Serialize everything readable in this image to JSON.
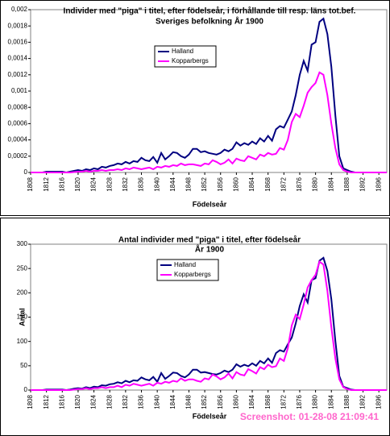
{
  "chart_data": [
    {
      "type": "line",
      "title": [
        "Individer med \"piga\" i titel, efter födelseår, i förhållande till resp. läns tot.bef.",
        "Sveriges befolkning År 1900"
      ],
      "xlabel": "Födelseår",
      "x": [
        1808,
        1809,
        1810,
        1811,
        1812,
        1813,
        1814,
        1815,
        1816,
        1817,
        1818,
        1819,
        1820,
        1821,
        1822,
        1823,
        1824,
        1825,
        1826,
        1827,
        1828,
        1829,
        1830,
        1831,
        1832,
        1833,
        1834,
        1835,
        1836,
        1837,
        1838,
        1839,
        1840,
        1841,
        1842,
        1843,
        1844,
        1845,
        1846,
        1847,
        1848,
        1849,
        1850,
        1851,
        1852,
        1853,
        1854,
        1855,
        1856,
        1857,
        1858,
        1859,
        1860,
        1861,
        1862,
        1863,
        1864,
        1865,
        1866,
        1867,
        1868,
        1869,
        1870,
        1871,
        1872,
        1873,
        1874,
        1875,
        1876,
        1877,
        1878,
        1879,
        1880,
        1881,
        1882,
        1883,
        1884,
        1885,
        1886,
        1887,
        1888,
        1889,
        1890,
        1891,
        1892,
        1893,
        1894,
        1895,
        1896,
        1897,
        1898
      ],
      "series": [
        {
          "name": "Halland",
          "color": "#000080",
          "values": [
            0,
            0,
            0,
            0,
            1e-05,
            1e-05,
            1e-05,
            1e-05,
            1e-05,
            0,
            1e-05,
            2e-05,
            3e-05,
            2e-05,
            4e-05,
            3e-05,
            5e-05,
            4e-05,
            7e-05,
            6e-05,
            8e-05,
            9e-05,
            0.00011,
            0.0001,
            0.00013,
            0.00011,
            0.00014,
            0.00013,
            0.00018,
            0.00015,
            0.00014,
            0.00019,
            0.00012,
            0.00024,
            0.00016,
            0.0002,
            0.00025,
            0.00024,
            0.0002,
            0.00018,
            0.00022,
            0.00029,
            0.00029,
            0.00025,
            0.00026,
            0.00024,
            0.00023,
            0.00022,
            0.00024,
            0.00028,
            0.00026,
            0.00029,
            0.00037,
            0.00033,
            0.00036,
            0.00034,
            0.00038,
            0.00035,
            0.00042,
            0.00038,
            0.00045,
            0.00039,
            0.00053,
            0.00057,
            0.00055,
            0.00065,
            0.00075,
            0.00095,
            0.0012,
            0.00137,
            0.00125,
            0.00157,
            0.0016,
            0.00185,
            0.00189,
            0.0017,
            0.0013,
            0.0007,
            0.0002,
            5e-05,
            3e-05,
            1e-05,
            0,
            0,
            0,
            0,
            0,
            0,
            0,
            0,
            0
          ]
        },
        {
          "name": "Kopparbergs",
          "color": "#ff00ff",
          "values": [
            0,
            0,
            0,
            0,
            0,
            0,
            0,
            0,
            0,
            0,
            0,
            5e-06,
            1e-05,
            1e-05,
            2e-05,
            1e-05,
            2e-05,
            2e-05,
            3e-05,
            2e-05,
            3e-05,
            3e-05,
            4e-05,
            3e-05,
            5e-05,
            4e-05,
            6e-05,
            5e-05,
            4e-05,
            5e-05,
            6e-05,
            4e-05,
            7e-05,
            6e-05,
            8e-05,
            7e-05,
            9e-05,
            8e-05,
            0.00011,
            9e-05,
            0.0001,
            0.0001,
            9e-05,
            8e-05,
            0.00011,
            0.0001,
            0.00015,
            0.00013,
            0.0001,
            0.00012,
            0.00016,
            0.00011,
            0.00017,
            0.00015,
            0.00014,
            0.0002,
            0.00018,
            0.00016,
            0.00022,
            0.0002,
            0.00024,
            0.00022,
            0.00023,
            0.0003,
            0.00028,
            0.0004,
            0.00062,
            0.00072,
            0.00068,
            0.00082,
            0.00098,
            0.00105,
            0.0011,
            0.00123,
            0.0012,
            0.00095,
            0.0006,
            0.0003,
            0.0001,
            3e-05,
            1e-05,
            0,
            0,
            0,
            0,
            0,
            0,
            0,
            0,
            0,
            0
          ]
        }
      ],
      "xlim": [
        1808,
        1898
      ],
      "xticks": [
        1808,
        1812,
        1816,
        1820,
        1824,
        1828,
        1832,
        1836,
        1840,
        1844,
        1848,
        1852,
        1856,
        1860,
        1864,
        1868,
        1872,
        1876,
        1880,
        1884,
        1888,
        1892,
        1896
      ],
      "ylim": [
        0,
        0.002
      ],
      "yticks": [
        0,
        {
          "value": 0.0002,
          "label": "0,0002"
        },
        {
          "value": 0.0004,
          "label": "0,0004"
        },
        {
          "value": 0.0006,
          "label": "0,0006"
        },
        {
          "value": 0.0008,
          "label": "0,0008"
        },
        {
          "value": 0.001,
          "label": "0,001"
        },
        {
          "value": 0.0012,
          "label": "0,0012"
        },
        {
          "value": 0.0014,
          "label": "0,0014"
        },
        {
          "value": 0.0016,
          "label": "0,0016"
        },
        {
          "value": 0.0018,
          "label": "0,0018"
        },
        {
          "value": 0.002,
          "label": "0,002"
        }
      ],
      "grid": false
    },
    {
      "type": "line",
      "title": [
        "Antal individer med \"piga\" i titel, efter födelseår",
        "År 1900"
      ],
      "xlabel": "Födelseår",
      "ylabel": "Antal",
      "x": [
        1808,
        1809,
        1810,
        1811,
        1812,
        1813,
        1814,
        1815,
        1816,
        1817,
        1818,
        1819,
        1820,
        1821,
        1822,
        1823,
        1824,
        1825,
        1826,
        1827,
        1828,
        1829,
        1830,
        1831,
        1832,
        1833,
        1834,
        1835,
        1836,
        1837,
        1838,
        1839,
        1840,
        1841,
        1842,
        1843,
        1844,
        1845,
        1846,
        1847,
        1848,
        1849,
        1850,
        1851,
        1852,
        1853,
        1854,
        1855,
        1856,
        1857,
        1858,
        1859,
        1860,
        1861,
        1862,
        1863,
        1864,
        1865,
        1866,
        1867,
        1868,
        1869,
        1870,
        1871,
        1872,
        1873,
        1874,
        1875,
        1876,
        1877,
        1878,
        1879,
        1880,
        1881,
        1882,
        1883,
        1884,
        1885,
        1886,
        1887,
        1888,
        1889,
        1890,
        1891,
        1892,
        1893,
        1894,
        1895,
        1896,
        1897,
        1898
      ],
      "series": [
        {
          "name": "Halland",
          "color": "#000080",
          "values": [
            0,
            0,
            0,
            0,
            1,
            1,
            1,
            1,
            1,
            0,
            1,
            3,
            4,
            3,
            6,
            4,
            7,
            6,
            10,
            9,
            12,
            13,
            16,
            14,
            19,
            16,
            20,
            19,
            26,
            22,
            20,
            27,
            17,
            35,
            23,
            29,
            36,
            35,
            29,
            26,
            32,
            42,
            42,
            36,
            37,
            35,
            33,
            32,
            35,
            40,
            37,
            42,
            53,
            48,
            52,
            49,
            55,
            50,
            60,
            55,
            65,
            56,
            76,
            82,
            79,
            94,
            108,
            137,
            173,
            197,
            180,
            226,
            230,
            266,
            272,
            245,
            187,
            101,
            29,
            7,
            4,
            1,
            0,
            0,
            0,
            0,
            0,
            0,
            0,
            0,
            0
          ]
        },
        {
          "name": "Kopparbergs",
          "color": "#ff00ff",
          "values": [
            0,
            0,
            0,
            0,
            0,
            0,
            0,
            0,
            0,
            0,
            0,
            1,
            2,
            2,
            4,
            2,
            4,
            4,
            6,
            4,
            6,
            6,
            9,
            6,
            11,
            9,
            13,
            11,
            9,
            11,
            13,
            9,
            15,
            13,
            17,
            15,
            19,
            17,
            24,
            19,
            22,
            22,
            19,
            17,
            24,
            22,
            32,
            28,
            22,
            26,
            34,
            24,
            37,
            32,
            30,
            43,
            39,
            34,
            47,
            43,
            52,
            47,
            49,
            65,
            60,
            86,
            133,
            155,
            146,
            176,
            211,
            226,
            237,
            264,
            258,
            204,
            129,
            65,
            22,
            6,
            2,
            0,
            0,
            0,
            0,
            0,
            0,
            0,
            0,
            0,
            0
          ]
        }
      ],
      "xlim": [
        1808,
        1898
      ],
      "xticks": [
        1808,
        1812,
        1816,
        1820,
        1824,
        1828,
        1832,
        1836,
        1840,
        1844,
        1848,
        1852,
        1856,
        1860,
        1864,
        1868,
        1872,
        1876,
        1880,
        1884,
        1888,
        1892,
        1896
      ],
      "ylim": [
        0,
        300
      ],
      "yticks": [
        0,
        50,
        100,
        150,
        200,
        250,
        300
      ],
      "grid": false,
      "annotation": "Screenshot: 01-28-08 21:09:41"
    }
  ]
}
